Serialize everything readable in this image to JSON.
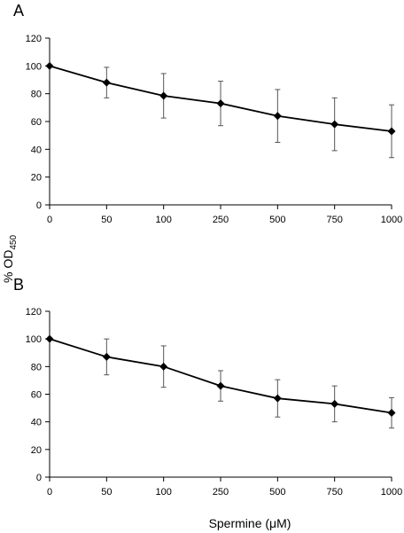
{
  "chart_data": [
    {
      "panel_label": "A",
      "type": "line",
      "categories": [
        "0",
        "50",
        "100",
        "250",
        "500",
        "750",
        "1000"
      ],
      "series": [
        {
          "values": [
            100,
            88,
            78.5,
            73,
            64,
            58,
            53
          ],
          "error": [
            0,
            11,
            16,
            16,
            19,
            19,
            19
          ]
        }
      ],
      "ylim": [
        0,
        120
      ],
      "yticks": [
        0,
        20,
        40,
        60,
        80,
        100,
        120
      ],
      "marker": "diamond",
      "error_bars": true,
      "grid": false
    },
    {
      "panel_label": "B",
      "type": "line",
      "categories": [
        "0",
        "50",
        "100",
        "250",
        "500",
        "750",
        "1000"
      ],
      "series": [
        {
          "values": [
            100,
            87,
            80,
            66,
            57,
            53,
            46.5
          ],
          "error": [
            0,
            13,
            15,
            11,
            13.5,
            13,
            11
          ]
        }
      ],
      "ylim": [
        0,
        120
      ],
      "yticks": [
        0,
        20,
        40,
        60,
        80,
        100,
        120
      ],
      "marker": "diamond",
      "error_bars": true,
      "grid": false
    }
  ],
  "ylabel": {
    "main": "% OD",
    "subscript": "450"
  },
  "xlabel": "Spermine (μM)",
  "colors": {
    "line": "#000000",
    "axis": "#000000",
    "error_bar": "#555555"
  }
}
